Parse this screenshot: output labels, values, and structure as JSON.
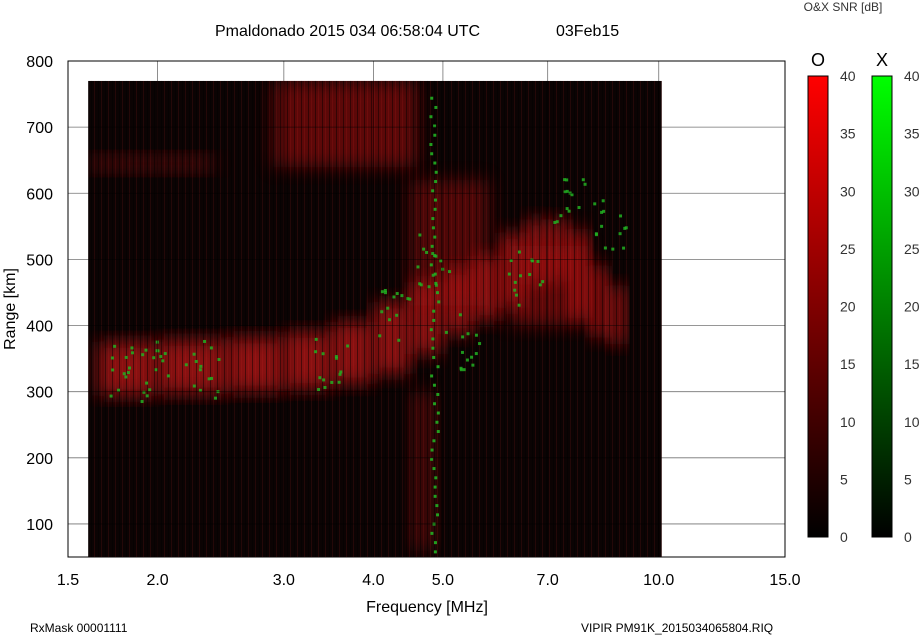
{
  "header": {
    "title": "Pmaldonado 2015 034 06:58:04 UTC",
    "date": "03Feb15",
    "colorbar_title": "O&X SNR [dB]"
  },
  "footer": {
    "rxmask": "RxMask 00001111",
    "filename": "VIPIR  PM91K_2015034065804.RIQ"
  },
  "chart_data": {
    "type": "heatmap",
    "title": "Pmaldonado 2015 034 06:58:04 UTC",
    "xlabel": "Frequency [MHz]",
    "ylabel": "Range [km]",
    "x_scale": "log",
    "xlim": [
      1.5,
      15.0
    ],
    "ylim": [
      50,
      800
    ],
    "x_ticks": [
      1.5,
      2.0,
      3.0,
      4.0,
      5.0,
      7.0,
      10.0,
      15.0
    ],
    "x_tick_labels": [
      "1.5",
      "2.0",
      "3.0",
      "4.0",
      "5.0",
      "7.0",
      "10.0",
      "15.0"
    ],
    "y_ticks": [
      100,
      200,
      300,
      400,
      500,
      600,
      700,
      800
    ],
    "y_tick_labels": [
      "100",
      "200",
      "300",
      "400",
      "500",
      "600",
      "700",
      "800"
    ],
    "data_extent": {
      "freq": [
        1.6,
        10.1
      ],
      "range": [
        50,
        770
      ]
    },
    "colorbars": [
      {
        "name": "O",
        "color": "#ff0000",
        "min": 0,
        "max": 40,
        "ticks": [
          0,
          5,
          10,
          15,
          20,
          25,
          30,
          35,
          40
        ]
      },
      {
        "name": "X",
        "color": "#00ff00",
        "min": 0,
        "max": 40,
        "ticks": [
          0,
          5,
          10,
          15,
          20,
          25,
          30,
          35,
          40
        ]
      }
    ],
    "o_trace": [
      {
        "freq": 1.65,
        "range": 312
      },
      {
        "freq": 2.0,
        "range": 315
      },
      {
        "freq": 2.5,
        "range": 318
      },
      {
        "freq": 3.0,
        "range": 322
      },
      {
        "freq": 3.5,
        "range": 330
      },
      {
        "freq": 4.0,
        "range": 345
      },
      {
        "freq": 4.5,
        "range": 375
      },
      {
        "freq": 5.0,
        "range": 405
      },
      {
        "freq": 5.5,
        "range": 425
      },
      {
        "freq": 6.0,
        "range": 445
      },
      {
        "freq": 6.5,
        "range": 480
      },
      {
        "freq": 7.0,
        "range": 500
      },
      {
        "freq": 7.5,
        "range": 485
      },
      {
        "freq": 8.0,
        "range": 430
      },
      {
        "freq": 8.5,
        "range": 400
      },
      {
        "freq": 9.0,
        "range": 390
      }
    ],
    "x_trace": [
      {
        "freq": 1.8,
        "range": 330
      },
      {
        "freq": 2.0,
        "range": 340
      },
      {
        "freq": 2.3,
        "range": 335
      },
      {
        "freq": 3.5,
        "range": 350
      },
      {
        "freq": 4.3,
        "range": 410
      },
      {
        "freq": 4.85,
        "range": 500
      },
      {
        "freq": 5.3,
        "range": 380
      },
      {
        "freq": 6.5,
        "range": 470
      },
      {
        "freq": 7.5,
        "range": 580
      },
      {
        "freq": 8.5,
        "range": 560
      }
    ]
  }
}
